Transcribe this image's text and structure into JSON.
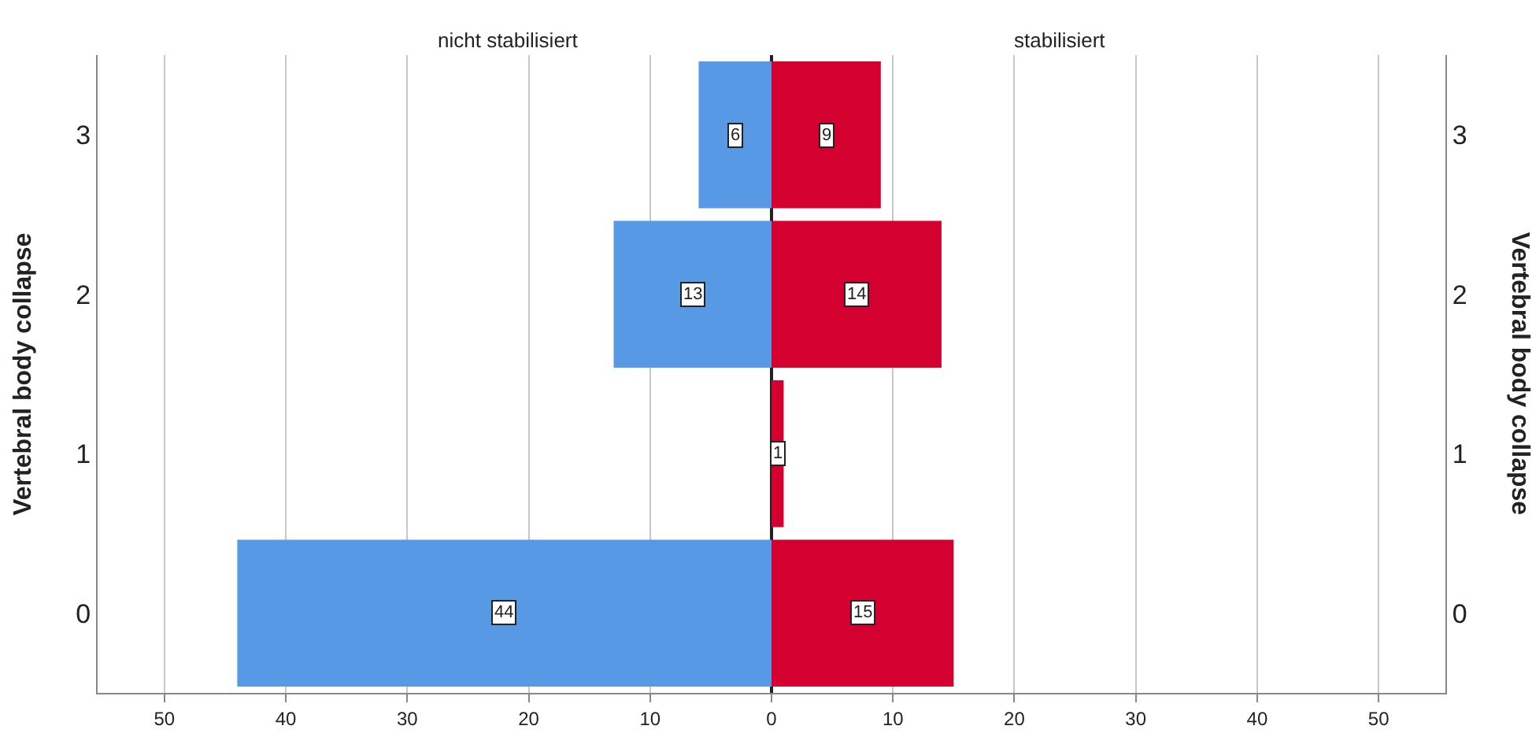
{
  "chart_data": {
    "type": "bar",
    "orientation": "horizontal",
    "ylabel": "Vertebral body collapse",
    "y2label": "Vertebral body collapse",
    "categories": [
      "3",
      "2",
      "1",
      "0"
    ],
    "series": [
      {
        "color": "#5899e6",
        "values": [
          6,
          13,
          null,
          44
        ],
        "base": [
          -6,
          -13,
          null,
          -44
        ],
        "value_labels": [
          "6",
          "13",
          null,
          "44"
        ]
      },
      {
        "color": "#d4002f",
        "values": [
          9,
          14,
          1,
          15
        ],
        "value_labels": [
          "9",
          "14",
          "1",
          "15"
        ]
      }
    ],
    "xlim": [
      -55.5,
      55.5
    ],
    "xticks": [
      {
        "value": -50,
        "label": "50"
      },
      {
        "value": -40,
        "label": "40"
      },
      {
        "value": -30,
        "label": "30"
      },
      {
        "value": -20,
        "label": "20"
      },
      {
        "value": -10,
        "label": "10"
      },
      0,
      10,
      20,
      30,
      40,
      50
    ],
    "grid": "x",
    "annotations": [
      "nicht stabilisiert",
      "stabilisiert"
    ]
  }
}
